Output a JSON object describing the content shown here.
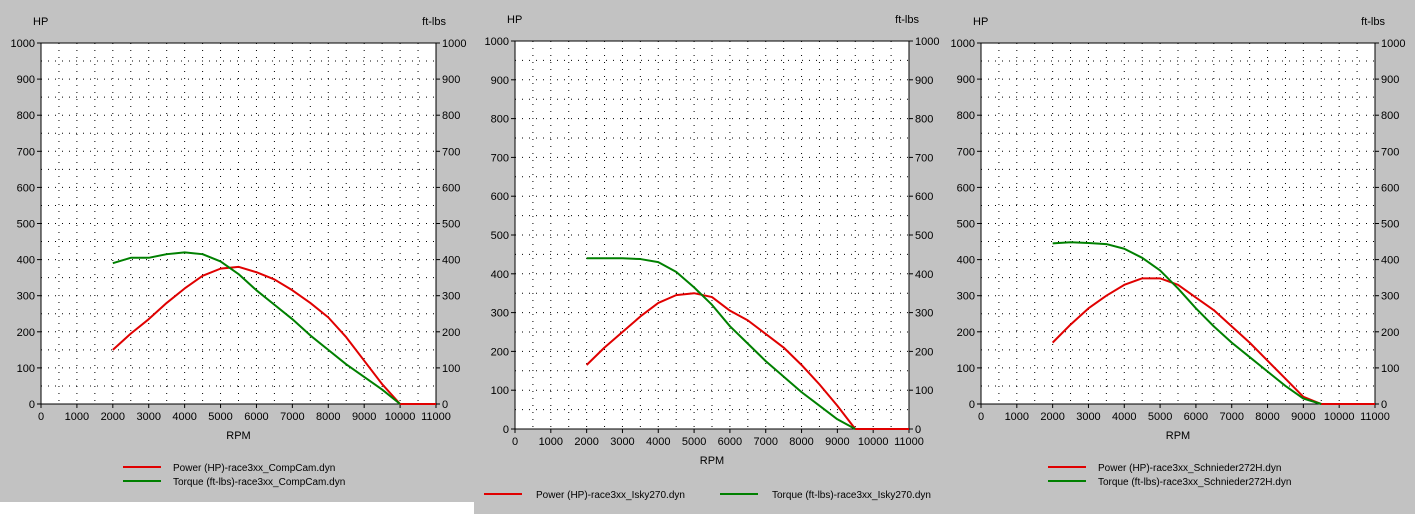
{
  "chart_data": [
    {
      "type": "line",
      "xlabel": "RPM",
      "ylabel_left": "HP",
      "ylabel_right": "ft-lbs",
      "xlim": [
        0,
        11000
      ],
      "ylim": [
        0,
        1000
      ],
      "x_ticks": [
        "0",
        "1000",
        "2000",
        "3000",
        "4000",
        "5000",
        "6000",
        "7000",
        "8000",
        "9000",
        "10000",
        "11000"
      ],
      "y_ticks": [
        "0",
        "100",
        "200",
        "300",
        "400",
        "500",
        "600",
        "700",
        "800",
        "900",
        "1000"
      ],
      "grid": true,
      "series": [
        {
          "name": "Power (HP)-race3xx_CompCam.dyn",
          "color": "#e00000",
          "x": [
            2000,
            2500,
            3000,
            3500,
            4000,
            4500,
            5000,
            5500,
            6000,
            6500,
            7000,
            7500,
            8000,
            8500,
            9000,
            9500,
            10000,
            10500,
            11000
          ],
          "y": [
            150,
            195,
            235,
            280,
            320,
            355,
            375,
            380,
            365,
            345,
            315,
            280,
            240,
            185,
            120,
            55,
            0,
            0,
            0
          ]
        },
        {
          "name": "Torque (ft-lbs)-race3xx_CompCam.dyn",
          "color": "#008000",
          "x": [
            2000,
            2500,
            3000,
            3500,
            4000,
            4500,
            5000,
            5500,
            6000,
            6500,
            7000,
            7500,
            8000,
            8500,
            9000,
            9500,
            10000
          ],
          "y": [
            390,
            405,
            405,
            415,
            420,
            415,
            395,
            360,
            315,
            275,
            235,
            190,
            150,
            110,
            75,
            40,
            0
          ]
        }
      ]
    },
    {
      "type": "line",
      "xlabel": "RPM",
      "ylabel_left": "HP",
      "ylabel_right": "ft-lbs",
      "xlim": [
        0,
        11000
      ],
      "ylim": [
        0,
        1000
      ],
      "x_ticks": [
        "0",
        "1000",
        "2000",
        "3000",
        "4000",
        "5000",
        "6000",
        "7000",
        "8000",
        "9000",
        "10000",
        "11000"
      ],
      "y_ticks": [
        "0",
        "100",
        "200",
        "300",
        "400",
        "500",
        "600",
        "700",
        "800",
        "900",
        "1000"
      ],
      "grid": true,
      "series": [
        {
          "name": "Power (HP)-race3xx_Isky270.dyn",
          "color": "#e00000",
          "x": [
            2000,
            2500,
            3000,
            3500,
            4000,
            4500,
            5000,
            5500,
            6000,
            6500,
            7000,
            7500,
            8000,
            8500,
            9000,
            9500,
            10000,
            10500,
            11000
          ],
          "y": [
            165,
            210,
            250,
            290,
            325,
            345,
            350,
            340,
            305,
            280,
            245,
            210,
            165,
            115,
            60,
            0,
            0,
            0,
            0
          ]
        },
        {
          "name": "Torque (ft-lbs)-race3xx_Isky270.dyn",
          "color": "#008000",
          "x": [
            2000,
            2500,
            3000,
            3500,
            4000,
            4500,
            5000,
            5500,
            6000,
            6500,
            7000,
            7500,
            8000,
            8500,
            9000,
            9500
          ],
          "y": [
            440,
            440,
            440,
            438,
            430,
            405,
            365,
            320,
            265,
            220,
            175,
            135,
            95,
            60,
            25,
            0
          ]
        }
      ]
    },
    {
      "type": "line",
      "xlabel": "RPM",
      "ylabel_left": "HP",
      "ylabel_right": "ft-lbs",
      "xlim": [
        0,
        11000
      ],
      "ylim": [
        0,
        1000
      ],
      "x_ticks": [
        "0",
        "1000",
        "2000",
        "3000",
        "4000",
        "5000",
        "6000",
        "7000",
        "8000",
        "9000",
        "10000",
        "11000"
      ],
      "y_ticks": [
        "0",
        "100",
        "200",
        "300",
        "400",
        "500",
        "600",
        "700",
        "800",
        "900",
        "1000"
      ],
      "grid": true,
      "series": [
        {
          "name": "Power (HP)-race3xx_Schnieder272H.dyn",
          "color": "#e00000",
          "x": [
            2000,
            2500,
            3000,
            3500,
            4000,
            4500,
            5000,
            5500,
            6000,
            6500,
            7000,
            7500,
            8000,
            8500,
            9000,
            9500,
            10000,
            10500,
            11000
          ],
          "y": [
            170,
            220,
            265,
            300,
            330,
            348,
            348,
            330,
            295,
            260,
            215,
            170,
            120,
            70,
            20,
            0,
            0,
            0,
            0
          ]
        },
        {
          "name": "Torque (ft-lbs)-race3xx_Schnieder272H.dyn",
          "color": "#008000",
          "x": [
            2000,
            2500,
            3000,
            3500,
            4000,
            4500,
            5000,
            5500,
            6000,
            6500,
            7000,
            7500,
            8000,
            8500,
            9000,
            9500
          ],
          "y": [
            445,
            448,
            446,
            443,
            430,
            405,
            370,
            320,
            265,
            215,
            170,
            130,
            90,
            50,
            15,
            0
          ]
        }
      ]
    }
  ]
}
